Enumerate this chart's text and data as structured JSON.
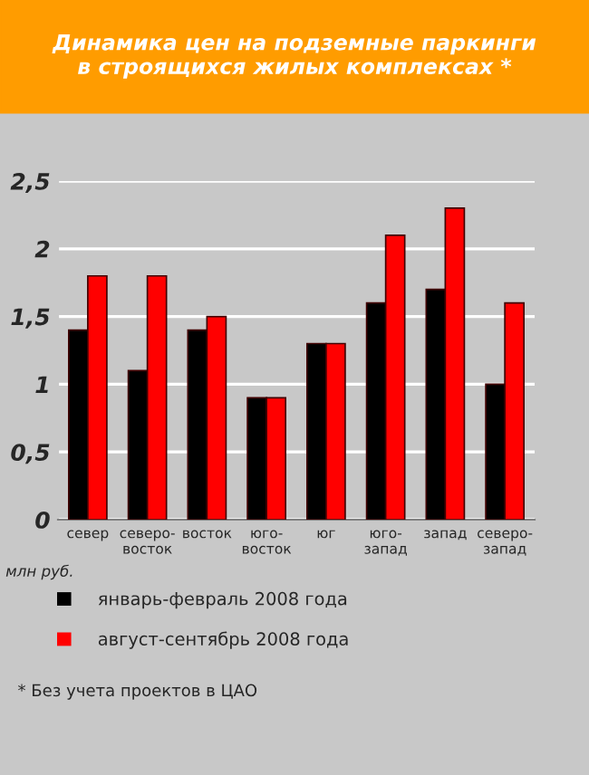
{
  "chart_data": {
    "type": "bar",
    "title": "Динамика цен на подземные паркинги\nв строящихся жилых комплексах *",
    "categories": [
      "север",
      "северо-\nвосток",
      "восток",
      "юго-\nвосток",
      "юг",
      "юго-\nзапад",
      "запад",
      "северо-\nзапад"
    ],
    "series": [
      {
        "name": "январь-февраль 2008 года",
        "color": "#000000",
        "values": [
          1.4,
          1.1,
          1.4,
          0.9,
          1.3,
          1.6,
          1.7,
          1.0
        ]
      },
      {
        "name": "август-сентябрь 2008 года",
        "color": "#ff0000",
        "values": [
          1.8,
          1.8,
          1.5,
          0.9,
          1.3,
          2.1,
          2.3,
          1.6
        ]
      }
    ],
    "ylabel": "млн руб.",
    "ylim": [
      0,
      2.5
    ],
    "yticks": [
      {
        "value": 0,
        "label": "0"
      },
      {
        "value": 0.5,
        "label": "0,5"
      },
      {
        "value": 1,
        "label": "1"
      },
      {
        "value": 1.5,
        "label": "1,5"
      },
      {
        "value": 2,
        "label": "2"
      },
      {
        "value": 2.5,
        "label": "2,5"
      }
    ],
    "grid": "y",
    "legend": "bottom",
    "annotations": [
      "* Без учета проектов в ЦАО"
    ]
  }
}
